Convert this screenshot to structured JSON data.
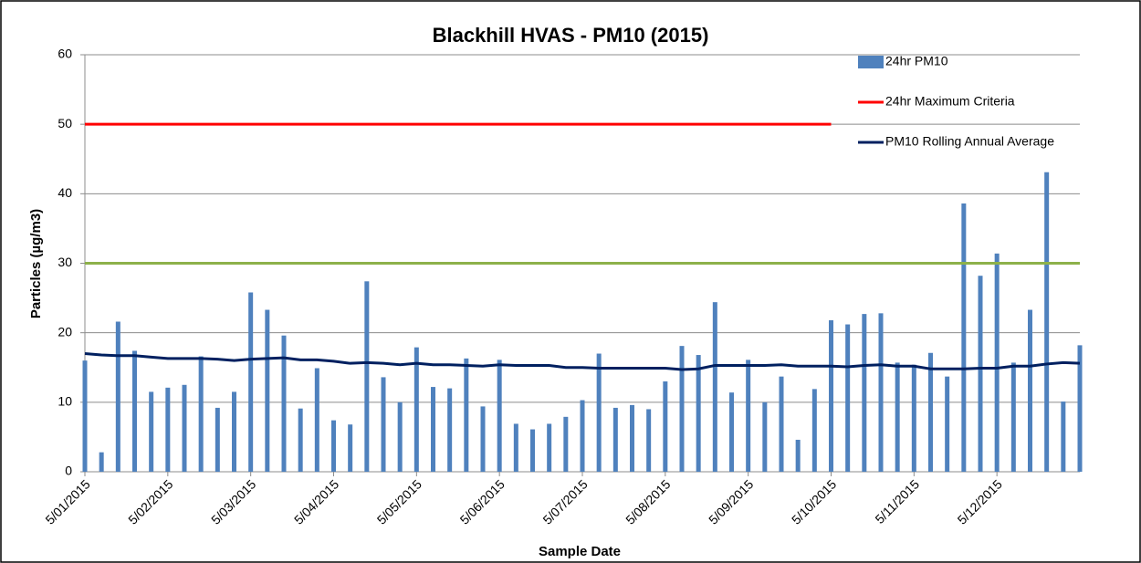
{
  "chart_data": {
    "type": "bar",
    "title": "Blackhill HVAS - PM10 (2015)",
    "x_label": "Sample Date",
    "y_label": "Particles (µg/m3)",
    "categories": [
      "5/01/2015",
      null,
      null,
      null,
      null,
      "5/02/2015",
      null,
      null,
      null,
      null,
      "5/03/2015",
      null,
      null,
      null,
      null,
      "5/04/2015",
      null,
      null,
      null,
      null,
      "5/05/2015",
      null,
      null,
      null,
      null,
      "5/06/2015",
      null,
      null,
      null,
      null,
      "5/07/2015",
      null,
      null,
      null,
      null,
      "5/08/2015",
      null,
      null,
      null,
      null,
      "5/09/2015",
      null,
      null,
      null,
      null,
      "5/10/2015",
      null,
      null,
      null,
      null,
      "5/11/2015",
      null,
      null,
      null,
      null,
      "5/12/2015",
      null,
      null,
      null,
      null,
      null
    ],
    "series": [
      {
        "name": "24hr PM10",
        "type": "bar",
        "color": "#4f81bd",
        "values": [
          16,
          2.8,
          21.6,
          17.4,
          11.5,
          12.1,
          12.5,
          16.6,
          9.2,
          11.5,
          25.8,
          23.3,
          19.6,
          9.1,
          14.9,
          7.4,
          6.8,
          27.4,
          13.6,
          10,
          17.9,
          12.2,
          12,
          16.3,
          9.4,
          16.1,
          6.9,
          6.1,
          6.9,
          7.9,
          10.3,
          17,
          9.2,
          9.6,
          9,
          13,
          18.1,
          16.8,
          24.4,
          11.4,
          16.1,
          10,
          13.7,
          4.6,
          11.9,
          21.8,
          21.2,
          22.7,
          22.8,
          15.7,
          15.4,
          17.1,
          13.7,
          38.6,
          28.2,
          31.4,
          15.7,
          23.3,
          43.1,
          10.1,
          18.2
        ]
      },
      {
        "name": "24hr Maximum Criteria",
        "type": "line",
        "color": "#ff0000",
        "values": [
          50,
          50,
          50,
          50,
          50,
          50,
          50,
          50,
          50,
          50,
          50,
          50,
          50,
          50,
          50,
          50,
          50,
          50,
          50,
          50,
          50,
          50,
          50,
          50,
          50,
          50,
          50,
          50,
          50,
          50,
          50,
          50,
          50,
          50,
          50,
          50,
          50,
          50,
          50,
          50,
          50,
          50,
          50,
          50,
          50,
          50,
          null,
          null,
          null,
          null,
          null,
          null,
          null,
          null,
          null,
          null,
          null,
          null,
          null,
          null,
          null
        ]
      },
      {
        "name": "PM10 Rolling Annual Average",
        "type": "line",
        "color": "#002060",
        "values": [
          17,
          16.8,
          16.7,
          16.7,
          16.5,
          16.3,
          16.3,
          16.3,
          16.2,
          16,
          16.2,
          16.3,
          16.4,
          16.1,
          16.1,
          15.9,
          15.6,
          15.7,
          15.6,
          15.4,
          15.6,
          15.4,
          15.4,
          15.3,
          15.2,
          15.4,
          15.3,
          15.3,
          15.3,
          15,
          15,
          14.9,
          14.9,
          14.9,
          14.9,
          14.9,
          14.7,
          14.8,
          15.3,
          15.3,
          15.3,
          15.3,
          15.4,
          15.2,
          15.2,
          15.2,
          15.1,
          15.3,
          15.4,
          15.2,
          15.2,
          14.8,
          14.8,
          14.8,
          14.9,
          14.9,
          15.2,
          15.2,
          15.5,
          15.7,
          15.6
        ]
      },
      {
        "type": "line",
        "color": "#8db14a",
        "values": [
          30,
          30,
          30,
          30,
          30,
          30,
          30,
          30,
          30,
          30,
          30,
          30,
          30,
          30,
          30,
          30,
          30,
          30,
          30,
          30,
          30,
          30,
          30,
          30,
          30,
          30,
          30,
          30,
          30,
          30,
          30,
          30,
          30,
          30,
          30,
          30,
          30,
          30,
          30,
          30,
          30,
          30,
          30,
          30,
          30,
          30,
          30,
          30,
          30,
          30,
          30,
          30,
          30,
          30,
          30,
          30,
          30,
          30,
          30,
          30,
          30
        ]
      }
    ],
    "ylim": [
      0,
      60
    ],
    "yticks": [
      0,
      10,
      20,
      30,
      40,
      50,
      60
    ],
    "grid": true,
    "legend": "top-right"
  }
}
